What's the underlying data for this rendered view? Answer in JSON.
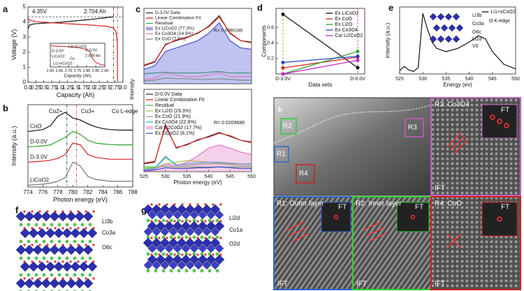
{
  "panel_labels": [
    "a",
    "b",
    "c",
    "d",
    "e",
    "f",
    "g"
  ],
  "chart_data": [
    {
      "type": "line",
      "xlabel": "Capacity (Ah)",
      "ylabel": "Voltage (V)",
      "xlim": [
        0,
        3.0
      ],
      "ylim": [
        0,
        5
      ],
      "xticks": [
        {
          "value": 0,
          "label": "0.0"
        },
        0.25,
        0.5,
        0.75,
        {
          "value": 1,
          "label": "1.0"
        },
        1.25,
        1.5,
        1.75,
        {
          "value": 2,
          "label": "2.0"
        },
        2.25,
        2.5,
        2.75,
        {
          "value": 3,
          "label": "3.0"
        }
      ],
      "yticks": [
        0,
        1,
        2,
        3,
        4,
        5
      ],
      "hlines": [
        4.35
      ],
      "vlines": [
        2.704,
        2.828
      ],
      "annotations": [
        "4.35V",
        "2.704 Ah"
      ],
      "series": [
        {
          "color": "#111111",
          "x": [
            0,
            0.05,
            0.2,
            0.5,
            1.0,
            1.5,
            2.0,
            2.5,
            2.704
          ],
          "values": [
            3.55,
            3.8,
            3.88,
            3.93,
            3.98,
            4.08,
            4.18,
            4.3,
            4.35
          ]
        },
        {
          "color": "#d62020",
          "x": [
            0,
            0.05,
            0.3,
            1.0,
            1.5,
            2.0,
            2.5,
            2.7,
            2.78,
            2.82,
            2.828
          ],
          "values": [
            4.25,
            4.12,
            4.02,
            3.92,
            3.86,
            3.8,
            3.72,
            3.6,
            3.35,
            2.6,
            0.05
          ]
        }
      ]
    },
    {
      "type": "line",
      "xlabel": "Capacity (Ah)",
      "xlim": [
        2.6,
        2.9
      ],
      "ylim": [
        0,
        4.2
      ],
      "xticks": [
        {
          "value": 2.6,
          "label": "2.60"
        },
        2.65,
        {
          "value": 2.7,
          "label": "2.70"
        },
        2.75,
        {
          "value": 2.8,
          "label": "2.80"
        },
        2.85,
        {
          "value": 2.9,
          "label": "2.90"
        }
      ],
      "annotations": [
        "Li0.5CoO2",
        "D-0.0V",
        "2.828 Ah",
        "D-3.0V",
        "LiCoO2",
        "Cu",
        "Li1+xCoO2"
      ],
      "series": [
        {
          "color": "#d62020",
          "x": [
            2.6,
            2.65,
            2.7,
            2.75,
            2.8,
            2.82,
            2.83,
            2.85,
            2.88,
            2.9
          ],
          "values": [
            3.75,
            3.68,
            3.6,
            3.45,
            3.1,
            2.6,
            1.6,
            0.8,
            0.4,
            0.3
          ]
        }
      ]
    },
    {
      "type": "line",
      "xlabel": "Photon energy (eV)",
      "ylabel": "Intensity  (a.u.)",
      "xlim": [
        774,
        788
      ],
      "ylim": [
        0,
        4.3
      ],
      "xticks": [
        774,
        776,
        778,
        780,
        782,
        784,
        786,
        788
      ],
      "vlines": [
        779.2,
        780.5
      ],
      "series_labels": true,
      "annotations": [
        "Co2+",
        "Co3+",
        "Co L-edge"
      ],
      "x": [
        774,
        775,
        776,
        777,
        778,
        779,
        780,
        781,
        782,
        783,
        784,
        785,
        786,
        787,
        788
      ],
      "series": [
        {
          "name": "CoO",
          "color": "#111111",
          "values": [
            2.9,
            2.95,
            3.0,
            3.2,
            3.7,
            3.9,
            3.6,
            3.5,
            3.3,
            3.15,
            3.05,
            3.0,
            2.98,
            2.97,
            2.97
          ]
        },
        {
          "name": "D-0.0V",
          "color": "#2ca02c",
          "values": [
            2.1,
            2.12,
            2.15,
            2.2,
            2.4,
            2.6,
            2.9,
            2.75,
            2.45,
            2.3,
            2.25,
            2.22,
            2.2,
            2.2,
            2.2
          ]
        },
        {
          "name": "D-3.0V",
          "color": "#d62020",
          "values": [
            1.3,
            1.32,
            1.35,
            1.4,
            1.5,
            1.7,
            2.3,
            2.2,
            1.7,
            1.55,
            1.5,
            1.45,
            1.45,
            1.45,
            1.45
          ]
        },
        {
          "name": "LiCoO2",
          "color": "#777777",
          "values": [
            0.1,
            0.12,
            0.15,
            0.2,
            0.3,
            0.5,
            1.3,
            1.1,
            0.55,
            0.4,
            0.35,
            0.3,
            0.3,
            0.3,
            0.3
          ]
        }
      ]
    },
    {
      "type": "line",
      "xlim": [
        525,
        550
      ],
      "ylim": [
        0,
        1.05
      ],
      "legend": "upper left",
      "annotations": [
        "R= 0.0080188"
      ],
      "x": [
        525,
        527.5,
        530,
        532.5,
        535,
        537.5,
        540,
        542.5,
        545,
        547.5,
        550
      ],
      "series": [
        {
          "name": "D-3.0V Data",
          "color": "#333333",
          "values": [
            0.25,
            0.3,
            0.55,
            0.6,
            0.65,
            0.7,
            0.8,
            0.95,
            0.7,
            0.6,
            0.58
          ]
        },
        {
          "name": "Linear Combination  Fit",
          "color": "#e0201b",
          "values": [
            0.26,
            0.31,
            0.54,
            0.61,
            0.64,
            0.71,
            0.79,
            0.93,
            0.71,
            0.6,
            0.57
          ]
        },
        {
          "name": "Residual",
          "color": "#3cb44b",
          "values": [
            0.14,
            0.15,
            0.16,
            0.15,
            0.15,
            0.15,
            0.16,
            0.17,
            0.15,
            0.15,
            0.15
          ]
        },
        {
          "name": "Ex LiCoO2 (77.3%)",
          "color": "#4a4fd0",
          "fill": true,
          "values": [
            0.2,
            0.25,
            0.45,
            0.5,
            0.55,
            0.6,
            0.7,
            0.85,
            0.6,
            0.5,
            0.48
          ]
        },
        {
          "name": "Ex Co3O4 (14.9%)",
          "color": "#e377c2",
          "values": [
            0.05,
            0.08,
            0.15,
            0.12,
            0.1,
            0.1,
            0.12,
            0.15,
            0.1,
            0.1,
            0.1
          ]
        },
        {
          "name": "Ex CoO (7.8%)",
          "color": "#888888",
          "values": [
            0.04,
            0.05,
            0.08,
            0.07,
            0.07,
            0.06,
            0.06,
            0.07,
            0.06,
            0.05,
            0.05
          ]
        }
      ]
    },
    {
      "type": "line",
      "xlabel": "Photon energy (eV)",
      "ylabel": "Intensity",
      "xlim": [
        525,
        550
      ],
      "ylim": [
        0,
        1.05
      ],
      "legend": "upper left",
      "xticks": [
        525,
        530,
        535,
        540,
        545,
        550
      ],
      "annotations": [
        "R= 0.0209686"
      ],
      "x": [
        525,
        527.5,
        530,
        532.5,
        535,
        537.5,
        540,
        542.5,
        545,
        547.5,
        550
      ],
      "series": [
        {
          "name": "D-0.0V Data",
          "color": "#333333",
          "values": [
            0.1,
            0.12,
            0.6,
            0.3,
            0.35,
            0.4,
            0.45,
            0.5,
            0.45,
            0.4,
            0.38
          ]
        },
        {
          "name": "Linear Combination  Fit",
          "color": "#e0201b",
          "values": [
            0.11,
            0.13,
            0.58,
            0.31,
            0.34,
            0.41,
            0.44,
            0.49,
            0.46,
            0.4,
            0.37
          ]
        },
        {
          "name": "Residual",
          "color": "#3cb44b",
          "values": [
            0.06,
            0.06,
            0.07,
            0.06,
            0.06,
            0.06,
            0.06,
            0.06,
            0.06,
            0.06,
            0.06
          ]
        },
        {
          "name": "Ex Li2O (29.3%)",
          "color": "#9acd32",
          "values": [
            0.04,
            0.05,
            0.1,
            0.12,
            0.14,
            0.13,
            0.12,
            0.11,
            0.1,
            0.1,
            0.1
          ]
        },
        {
          "name": "Ex CoO (21.9%)",
          "color": "#999999",
          "values": [
            0.03,
            0.04,
            0.2,
            0.08,
            0.08,
            0.09,
            0.1,
            0.1,
            0.09,
            0.08,
            0.08
          ]
        },
        {
          "name": "Ex Co3O4 (22.9%)",
          "color": "#17becf",
          "values": [
            0.03,
            0.04,
            0.18,
            0.09,
            0.1,
            0.11,
            0.12,
            0.12,
            0.11,
            0.1,
            0.1
          ]
        },
        {
          "name": "Cal Li2CoO2 (17.7%)",
          "color": "#e377c2",
          "fill": true,
          "values": [
            0.02,
            0.03,
            0.1,
            0.08,
            0.12,
            0.2,
            0.3,
            0.34,
            0.3,
            0.25,
            0.22
          ]
        },
        {
          "name": "Ex LiCoO2 (8.1%)",
          "color": "#4a4fd0",
          "values": [
            0.01,
            0.02,
            0.05,
            0.04,
            0.04,
            0.05,
            0.05,
            0.06,
            0.05,
            0.04,
            0.04
          ]
        }
      ]
    },
    {
      "type": "line",
      "xlabel": "Data sets",
      "ylabel": "Components",
      "categories": [
        "D-3.0V",
        "D-0.0V"
      ],
      "ylim": [
        0,
        0.85
      ],
      "yticks": [
        0.2,
        0.4,
        0.6
      ],
      "legend": "upper right",
      "markers": true,
      "series": [
        {
          "name": "Ex LiCoO2",
          "color": "#111111",
          "values": [
            0.773,
            0.081
          ]
        },
        {
          "name": "Ex CoO",
          "color": "#d62020",
          "values": [
            0.078,
            0.219
          ]
        },
        {
          "name": "Ex Li2O",
          "color": "#2ca02c",
          "values": [
            0,
            0.293
          ]
        },
        {
          "name": "Ex Co3O4",
          "color": "#1f3fd0",
          "values": [
            0.149,
            0.229
          ]
        },
        {
          "name": "Cal Li2CoO2",
          "color": "#d020d0",
          "values": [
            0,
            0.177
          ]
        }
      ]
    },
    {
      "type": "line",
      "xlabel": "Energy (ev)",
      "ylabel": "Intensity (a.u.)",
      "xlim": [
        525,
        550
      ],
      "ylim": [
        0,
        1.05
      ],
      "xticks": [
        525,
        530,
        535,
        540,
        545,
        550
      ],
      "legend": "upper right",
      "annotations": [
        "O K-edge",
        "Li3b",
        "Co3a",
        "O6c",
        "Li2d",
        "V0"
      ],
      "x": [
        525,
        526,
        527,
        528,
        529,
        530,
        531,
        532,
        533,
        535,
        537.5,
        540,
        542,
        543.5,
        545,
        547.5,
        550
      ],
      "series": [
        {
          "name": "Li1+xCoO2",
          "color": "#111111",
          "values": [
            0.05,
            0.12,
            0.06,
            0.04,
            0.1,
            0.95,
            0.7,
            0.5,
            0.4,
            0.35,
            0.4,
            0.5,
            0.6,
            0.55,
            0.35,
            0.15,
            0.08
          ]
        }
      ]
    }
  ],
  "structures": {
    "f": [
      "Li3b",
      "Co3a",
      "O6c"
    ],
    "g": [
      "Li2d",
      "Co1a",
      "O2d"
    ]
  },
  "tem": {
    "label": "h",
    "regions": [
      "R1",
      "R2",
      "R3",
      "R4"
    ],
    "panels": [
      {
        "title": "R3: Co3O4",
        "ft": "FT",
        "ift": "IFT"
      },
      {
        "title": "R1: Outer layer",
        "ft": "FT",
        "ift": "IFT"
      },
      {
        "title": "R2: Inner layer",
        "ft": "FT",
        "ift": "IFT"
      },
      {
        "title": "R4: CoO",
        "ft": "FT",
        "ift": "IFT"
      }
    ]
  }
}
